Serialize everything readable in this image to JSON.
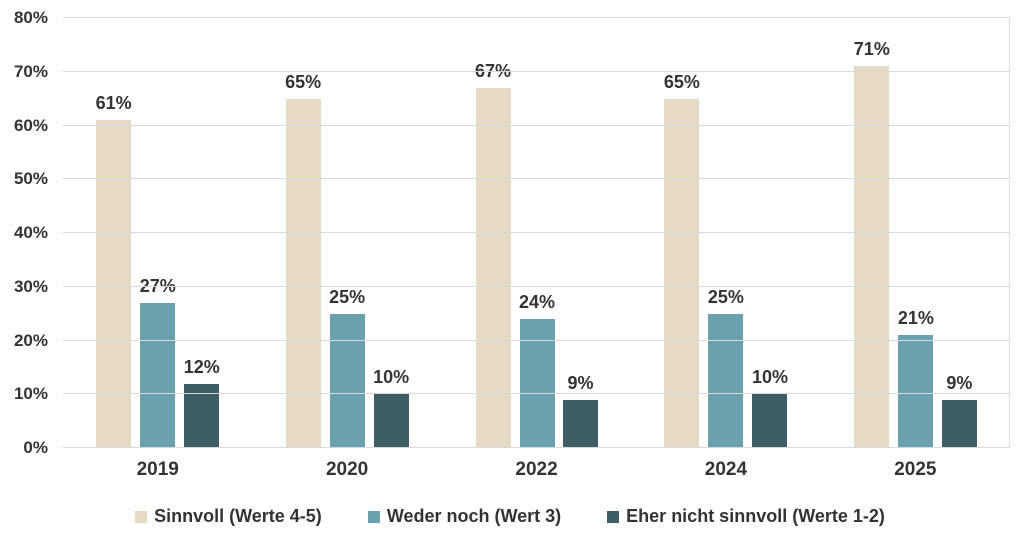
{
  "chart_data": {
    "type": "bar",
    "categories": [
      "2019",
      "2020",
      "2022",
      "2024",
      "2025"
    ],
    "series": [
      {
        "name": "Sinnvoll (Werte 4-5)",
        "color": "#e5dac4",
        "values": [
          61,
          65,
          67,
          65,
          71
        ]
      },
      {
        "name": "Weder noch (Wert 3)",
        "color": "#6ba1ad",
        "values": [
          27,
          25,
          24,
          25,
          21
        ]
      },
      {
        "name": "Eher nicht sinnvoll (Werte 1-2)",
        "color": "#3e5d65",
        "values": [
          12,
          10,
          9,
          10,
          9
        ]
      }
    ],
    "value_suffix": "%",
    "y_axis": {
      "min": 0,
      "max": 80,
      "step": 10,
      "tick_labels": [
        "0%",
        "10%",
        "20%",
        "30%",
        "40%",
        "50%",
        "60%",
        "70%",
        "80%"
      ]
    },
    "grid": "horizontal",
    "legend_position": "bottom"
  },
  "style": {
    "text_color": "#333333",
    "grid_color": "#d9d9d9",
    "background": "#ffffff"
  }
}
